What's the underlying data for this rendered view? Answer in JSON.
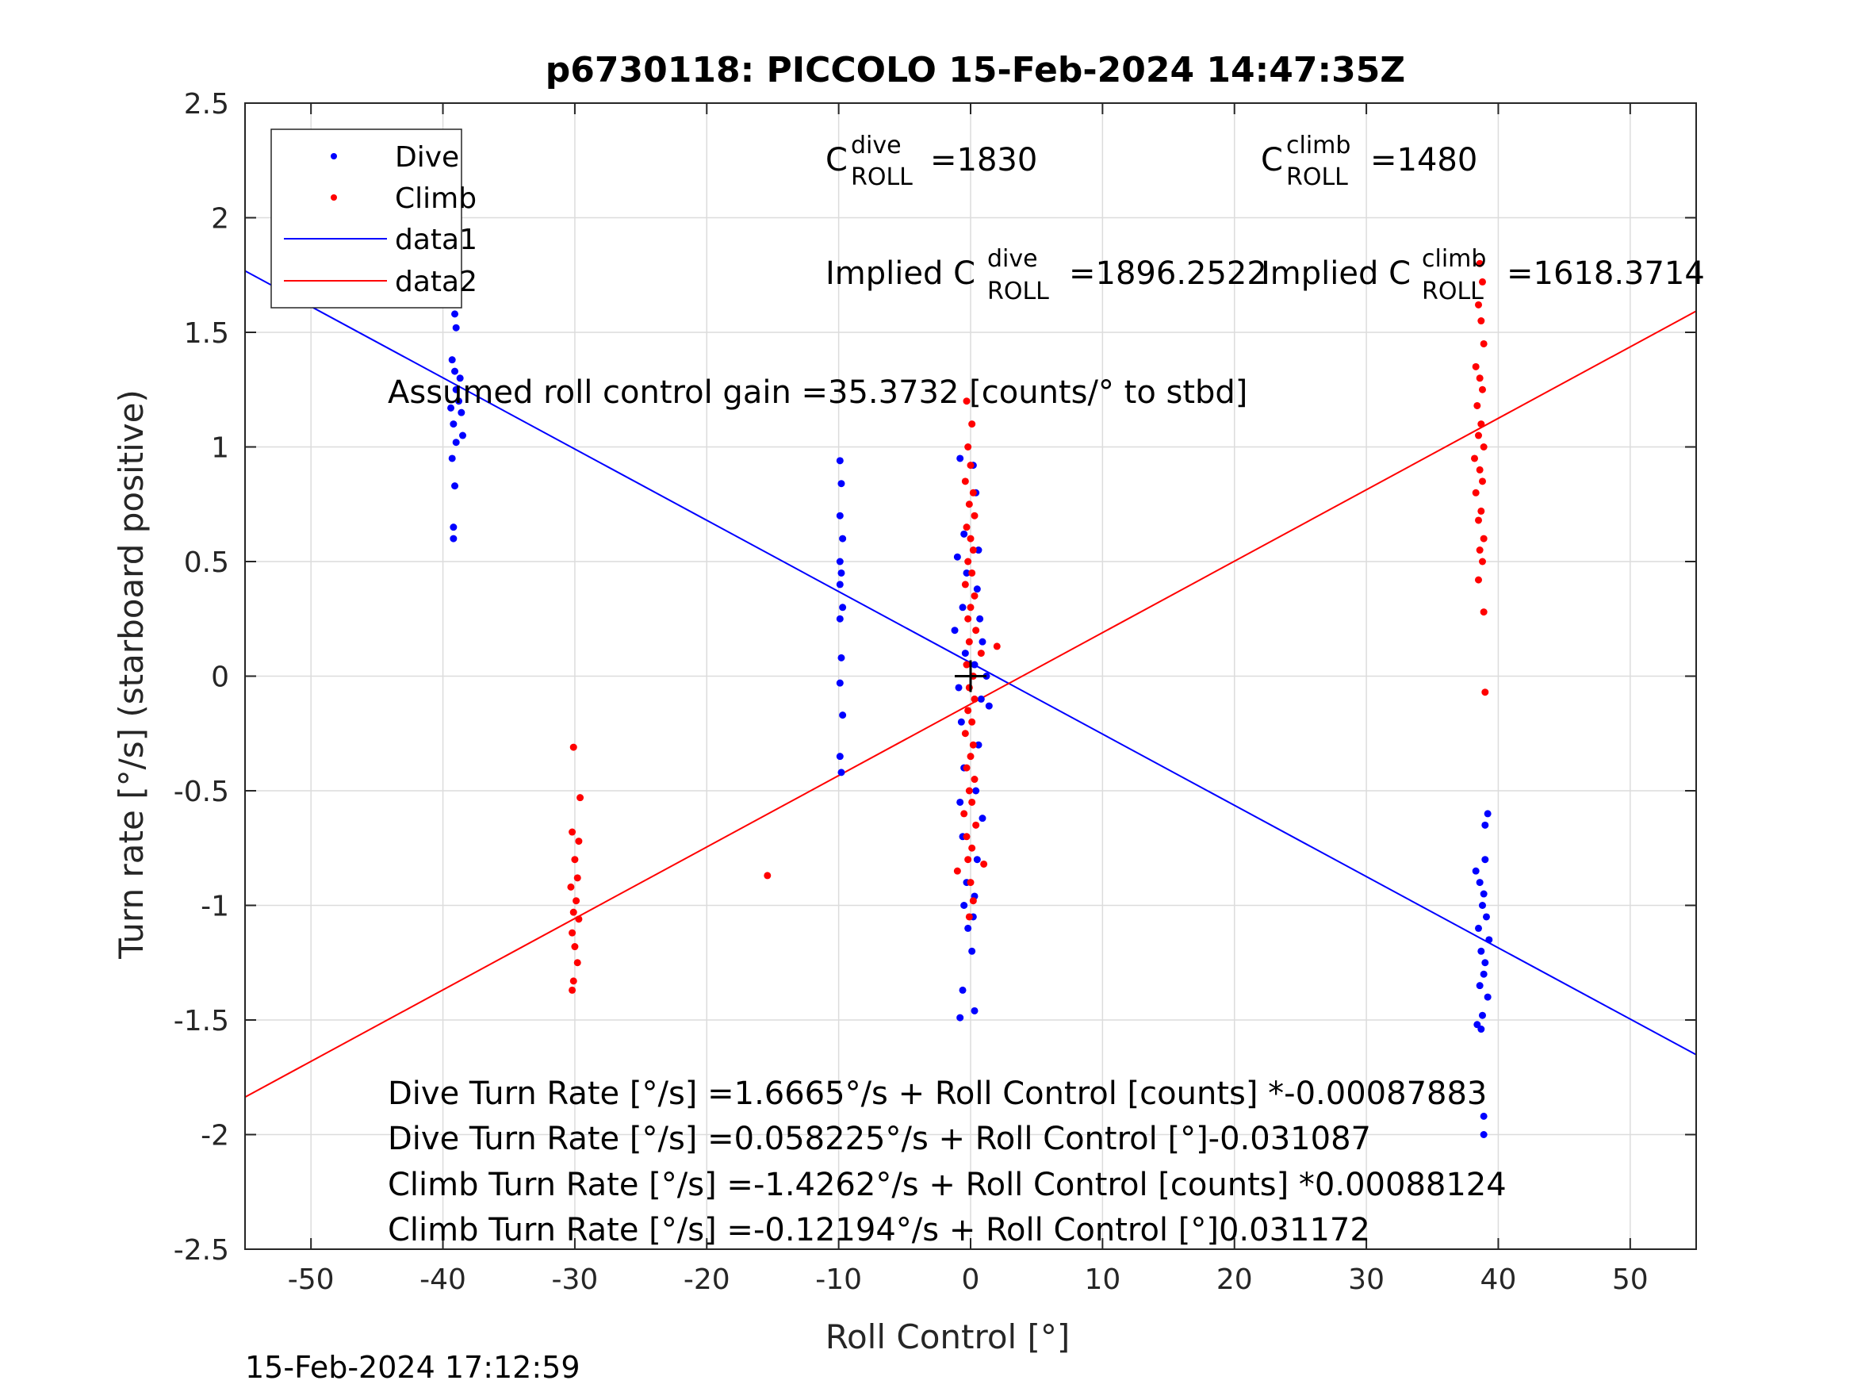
{
  "chart_data": {
    "type": "scatter",
    "title": "p6730118: PICCOLO 15-Feb-2024 14:47:35Z",
    "xlabel": "Roll Control [°]",
    "ylabel": "Turn rate [°/s] (starboard positive)",
    "xlim": [
      -55,
      55
    ],
    "ylim": [
      -2.5,
      2.5
    ],
    "xticks": [
      "-50",
      "-40",
      "-30",
      "-20",
      "-10",
      "0",
      "10",
      "20",
      "30",
      "40",
      "50"
    ],
    "yticks": [
      "2.5",
      "2",
      "1.5",
      "1",
      "0.5",
      "0",
      "-0.5",
      "-1",
      "-1.5",
      "-2",
      "-2.5"
    ],
    "grid": true,
    "legend": {
      "placement": "top-left",
      "entries": [
        {
          "label": "Dive",
          "color": "#0000ff",
          "kind": "marker"
        },
        {
          "label": "Climb",
          "color": "#ff0000",
          "kind": "marker"
        },
        {
          "label": "data1",
          "color": "#0000ff",
          "kind": "line"
        },
        {
          "label": "data2",
          "color": "#ff0000",
          "kind": "line"
        }
      ]
    },
    "series": [
      {
        "name": "Dive",
        "color": "#0000ff",
        "points": [
          [
            -39.3,
            1.75
          ],
          [
            -39.2,
            1.7
          ],
          [
            -39.1,
            1.58
          ],
          [
            -39.0,
            1.52
          ],
          [
            -39.3,
            1.38
          ],
          [
            -39.1,
            1.33
          ],
          [
            -38.7,
            1.3
          ],
          [
            -39.0,
            1.25
          ],
          [
            -38.8,
            1.2
          ],
          [
            -39.4,
            1.17
          ],
          [
            -38.6,
            1.15
          ],
          [
            -39.2,
            1.1
          ],
          [
            -38.5,
            1.05
          ],
          [
            -39.0,
            1.02
          ],
          [
            -39.3,
            0.95
          ],
          [
            -39.1,
            0.83
          ],
          [
            -39.2,
            0.65
          ],
          [
            -39.2,
            0.6
          ],
          [
            -9.9,
            0.94
          ],
          [
            -9.8,
            0.84
          ],
          [
            -9.9,
            0.7
          ],
          [
            -9.7,
            0.6
          ],
          [
            -9.9,
            0.5
          ],
          [
            -9.8,
            0.45
          ],
          [
            -9.9,
            0.4
          ],
          [
            -9.7,
            0.3
          ],
          [
            -9.9,
            0.25
          ],
          [
            -9.8,
            0.08
          ],
          [
            -9.9,
            -0.03
          ],
          [
            -9.7,
            -0.17
          ],
          [
            -9.9,
            -0.35
          ],
          [
            -9.8,
            -0.42
          ],
          [
            -0.8,
            0.95
          ],
          [
            0.2,
            0.92
          ],
          [
            0.4,
            0.8
          ],
          [
            -0.5,
            0.62
          ],
          [
            0.6,
            0.55
          ],
          [
            -1.0,
            0.52
          ],
          [
            -0.3,
            0.45
          ],
          [
            0.5,
            0.38
          ],
          [
            -0.6,
            0.3
          ],
          [
            0.7,
            0.25
          ],
          [
            -1.2,
            0.2
          ],
          [
            0.9,
            0.15
          ],
          [
            -0.4,
            0.1
          ],
          [
            0.3,
            0.05
          ],
          [
            1.2,
            0.0
          ],
          [
            -0.9,
            -0.05
          ],
          [
            0.8,
            -0.1
          ],
          [
            1.4,
            -0.13
          ],
          [
            -0.7,
            -0.2
          ],
          [
            0.6,
            -0.3
          ],
          [
            -0.5,
            -0.4
          ],
          [
            0.4,
            -0.5
          ],
          [
            -0.8,
            -0.55
          ],
          [
            0.9,
            -0.62
          ],
          [
            -0.6,
            -0.7
          ],
          [
            0.5,
            -0.8
          ],
          [
            -0.3,
            -0.9
          ],
          [
            0.3,
            -0.96
          ],
          [
            -0.5,
            -1.0
          ],
          [
            0.2,
            -1.05
          ],
          [
            -0.2,
            -1.1
          ],
          [
            0.1,
            -1.2
          ],
          [
            -0.6,
            -1.37
          ],
          [
            0.3,
            -1.46
          ],
          [
            -0.8,
            -1.49
          ],
          [
            38.3,
            -0.85
          ],
          [
            38.6,
            -0.9
          ],
          [
            38.9,
            -0.95
          ],
          [
            39.2,
            -0.6
          ],
          [
            39.0,
            -0.65
          ],
          [
            38.8,
            -1.0
          ],
          [
            39.1,
            -1.05
          ],
          [
            38.5,
            -1.1
          ],
          [
            39.3,
            -1.15
          ],
          [
            38.7,
            -1.2
          ],
          [
            39.0,
            -1.25
          ],
          [
            38.9,
            -1.3
          ],
          [
            38.6,
            -1.35
          ],
          [
            39.2,
            -1.4
          ],
          [
            38.8,
            -1.48
          ],
          [
            38.4,
            -1.52
          ],
          [
            38.7,
            -1.54
          ],
          [
            39.0,
            -0.8
          ],
          [
            38.9,
            -1.92
          ],
          [
            38.9,
            -2.0
          ]
        ]
      },
      {
        "name": "Climb",
        "color": "#ff0000",
        "points": [
          [
            38.6,
            1.8
          ],
          [
            38.8,
            1.72
          ],
          [
            38.5,
            1.62
          ],
          [
            38.7,
            1.55
          ],
          [
            38.9,
            1.45
          ],
          [
            38.3,
            1.35
          ],
          [
            38.6,
            1.3
          ],
          [
            38.8,
            1.25
          ],
          [
            38.4,
            1.18
          ],
          [
            38.7,
            1.1
          ],
          [
            38.5,
            1.05
          ],
          [
            38.9,
            1.0
          ],
          [
            38.2,
            0.95
          ],
          [
            38.6,
            0.9
          ],
          [
            38.8,
            0.85
          ],
          [
            38.3,
            0.8
          ],
          [
            38.7,
            0.72
          ],
          [
            38.5,
            0.68
          ],
          [
            38.9,
            0.6
          ],
          [
            38.6,
            0.55
          ],
          [
            38.8,
            0.5
          ],
          [
            38.5,
            0.42
          ],
          [
            38.9,
            0.28
          ],
          [
            39.0,
            -0.07
          ],
          [
            -30.1,
            -0.31
          ],
          [
            -29.6,
            -0.53
          ],
          [
            -30.2,
            -0.68
          ],
          [
            -29.7,
            -0.72
          ],
          [
            -30.0,
            -0.8
          ],
          [
            -29.8,
            -0.88
          ],
          [
            -30.3,
            -0.92
          ],
          [
            -29.9,
            -0.98
          ],
          [
            -30.1,
            -1.03
          ],
          [
            -29.7,
            -1.06
          ],
          [
            -30.2,
            -1.12
          ],
          [
            -30.0,
            -1.18
          ],
          [
            -29.8,
            -1.25
          ],
          [
            -30.1,
            -1.33
          ],
          [
            -30.2,
            -1.37
          ],
          [
            -15.4,
            -0.87
          ],
          [
            -0.3,
            1.2
          ],
          [
            0.1,
            1.1
          ],
          [
            -0.2,
            1.0
          ],
          [
            0.0,
            0.92
          ],
          [
            -0.4,
            0.85
          ],
          [
            0.2,
            0.8
          ],
          [
            -0.1,
            0.75
          ],
          [
            0.3,
            0.7
          ],
          [
            -0.3,
            0.65
          ],
          [
            0.0,
            0.6
          ],
          [
            0.2,
            0.55
          ],
          [
            -0.2,
            0.5
          ],
          [
            0.1,
            0.45
          ],
          [
            -0.4,
            0.4
          ],
          [
            0.3,
            0.35
          ],
          [
            0.0,
            0.3
          ],
          [
            -0.2,
            0.25
          ],
          [
            0.4,
            0.2
          ],
          [
            -0.1,
            0.15
          ],
          [
            2.0,
            0.13
          ],
          [
            0.8,
            0.1
          ],
          [
            -0.3,
            0.05
          ],
          [
            0.2,
            0.0
          ],
          [
            -0.1,
            -0.05
          ],
          [
            0.3,
            -0.1
          ],
          [
            -0.2,
            -0.15
          ],
          [
            0.1,
            -0.2
          ],
          [
            -0.4,
            -0.25
          ],
          [
            0.2,
            -0.3
          ],
          [
            0.0,
            -0.35
          ],
          [
            -0.3,
            -0.4
          ],
          [
            0.3,
            -0.45
          ],
          [
            -0.1,
            -0.5
          ],
          [
            0.1,
            -0.55
          ],
          [
            -0.5,
            -0.6
          ],
          [
            0.4,
            -0.65
          ],
          [
            -0.3,
            -0.7
          ],
          [
            0.1,
            -0.75
          ],
          [
            -0.2,
            -0.8
          ],
          [
            1.0,
            -0.82
          ],
          [
            -1.0,
            -0.85
          ],
          [
            0.0,
            -0.9
          ],
          [
            -0.1,
            -1.05
          ],
          [
            0.2,
            -0.98
          ]
        ]
      }
    ],
    "fits": [
      {
        "name": "data1",
        "color": "#0000ff",
        "slope": -0.031087,
        "intercept": 0.058225
      },
      {
        "name": "data2",
        "color": "#ff0000",
        "slope": 0.031172,
        "intercept": -0.12194
      }
    ],
    "center_marker": [
      0,
      0
    ],
    "annotations": {
      "c_dive": {
        "base": "C",
        "sup": "dive",
        "sub": "ROLL",
        "value": "=1830"
      },
      "c_climb": {
        "base": "C",
        "sup": "climb",
        "sub": "ROLL",
        "value": "=1480"
      },
      "implied_dive": {
        "prefix": "Implied C",
        "sup": "dive",
        "sub": "ROLL",
        "value": "=1896.2522"
      },
      "implied_climb": {
        "prefix": "Implied C",
        "sup": "climb",
        "sub": "ROLL",
        "value": "=1618.3714"
      },
      "gain": "Assumed roll control gain =35.3732 [counts/° to stbd]",
      "eq_lines": [
        "Dive Turn Rate [°/s] =1.6665°/s + Roll Control [counts] *-0.00087883",
        "Dive Turn Rate [°/s] =0.058225°/s + Roll Control [°]-0.031087",
        "Climb Turn Rate [°/s] =-1.4262°/s + Roll Control [counts] *0.00088124",
        "Climb Turn Rate [°/s] =-0.12194°/s + Roll Control [°]0.031172"
      ]
    }
  },
  "footer": {
    "timestamp": "15-Feb-2024 17:12:59"
  }
}
